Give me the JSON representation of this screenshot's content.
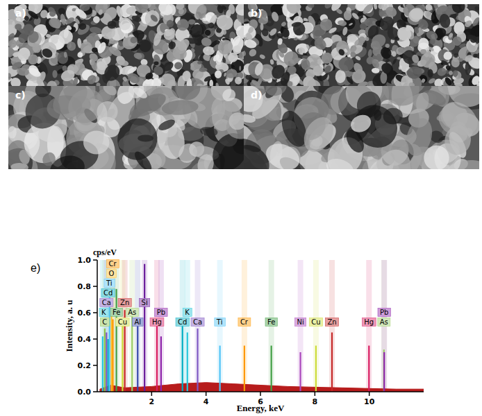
{
  "figure": {
    "panels": [
      "a)",
      "b)",
      "c)",
      "d)"
    ]
  },
  "chart_data": {
    "type": "stem",
    "panel_label": "e)",
    "y_unit": "cps/eV",
    "x_label": "Energy, keV",
    "y_label": "Intensity, a. u",
    "xlim": [
      0,
      12
    ],
    "xticks": [
      2,
      4,
      6,
      8,
      10
    ],
    "ylim": [
      0,
      1.0
    ],
    "yticks": [
      {
        "value": 0,
        "label": "0.0"
      },
      {
        "value": 0.2,
        "label": "0.2"
      },
      {
        "value": 0.4,
        "label": "0.4"
      },
      {
        "value": 0.6,
        "label": "0.6"
      },
      {
        "value": 0.8,
        "label": "0.8"
      },
      {
        "value": 1.0,
        "label": "1.0"
      }
    ],
    "grid": false,
    "peak_labels": [
      "C",
      "K",
      "Ca",
      "Cd",
      "Ti",
      "O",
      "Cr",
      "Fe",
      "Cu",
      "Zn",
      "As",
      "Al",
      "Si",
      "Hg",
      "Pb",
      "Cd",
      "K",
      "Ca",
      "Ti",
      "Cr",
      "Fe",
      "Ni",
      "Cu",
      "Zn",
      "Hg",
      "As",
      "Pb"
    ],
    "x": [
      0.277,
      0.2,
      0.341,
      0.4,
      0.452,
      0.525,
      0.573,
      0.705,
      0.93,
      1.012,
      1.282,
      1.487,
      1.74,
      2.195,
      2.346,
      3.133,
      3.313,
      3.69,
      4.51,
      5.41,
      6.4,
      7.47,
      8.04,
      8.63,
      9.99,
      10.54,
      10.55
    ],
    "values": [
      0.48,
      0.42,
      0.45,
      0.4,
      0.72,
      0.62,
      0.55,
      0.78,
      0.55,
      0.62,
      0.6,
      0.52,
      0.97,
      0.5,
      0.42,
      0.5,
      0.45,
      0.48,
      0.35,
      0.35,
      0.35,
      0.3,
      0.35,
      0.45,
      0.35,
      0.32,
      0.3
    ],
    "colors": [
      "#8bc34a",
      "#26c6da",
      "#7e57c2",
      "#00acc1",
      "#4fc3f7",
      "#fbc02d",
      "#ff9800",
      "#43a047",
      "#cddc39",
      "#c62828",
      "#9ccc65",
      "#3949ab",
      "#6a1b9a",
      "#d81b60",
      "#8e24aa",
      "#00acc1",
      "#26c6da",
      "#7e57c2",
      "#4fc3f7",
      "#ff9800",
      "#43a047",
      "#ab47bc",
      "#cddc39",
      "#c62828",
      "#d81b60",
      "#9ccc65",
      "#8e24aa"
    ],
    "background": {
      "color": "#b71c1c",
      "x": [
        0.1,
        0.5,
        1,
        2,
        3,
        4,
        5,
        6,
        7,
        8,
        9,
        10,
        11,
        12
      ],
      "values": [
        0.02,
        0.05,
        0.03,
        0.04,
        0.06,
        0.07,
        0.06,
        0.05,
        0.04,
        0.035,
        0.03,
        0.025,
        0.02,
        0.02
      ]
    }
  }
}
